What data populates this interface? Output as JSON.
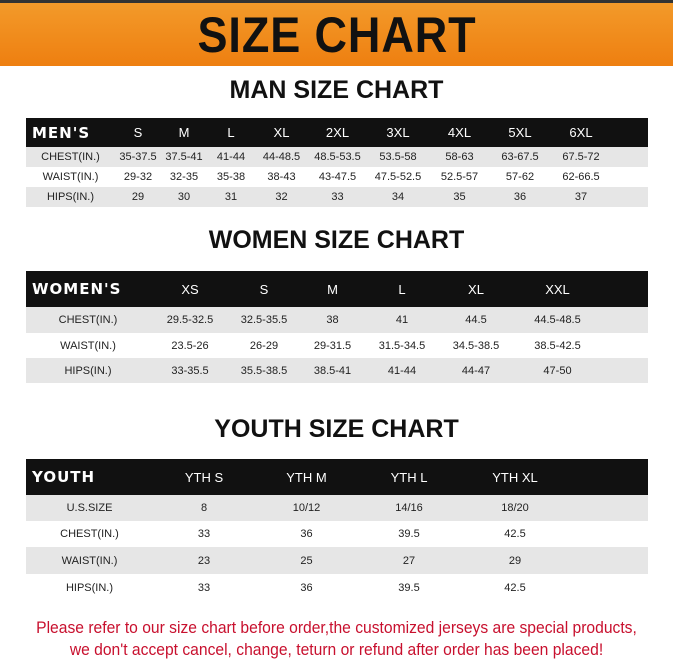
{
  "banner_title": "SIZE CHART",
  "men": {
    "title": "MAN SIZE CHART",
    "header": [
      "MEN'S",
      "S",
      "M",
      "L",
      "XL",
      "2XL",
      "3XL",
      "4XL",
      "5XL",
      "6XL"
    ],
    "rows": [
      [
        "CHEST(IN.)",
        "35-37.5",
        "37.5-41",
        "41-44",
        "44-48.5",
        "48.5-53.5",
        "53.5-58",
        "58-63",
        "63-67.5",
        "67.5-72"
      ],
      [
        "WAIST(IN.)",
        "29-32",
        "32-35",
        "35-38",
        "38-43",
        "43-47.5",
        "47.5-52.5",
        "52.5-57",
        "57-62",
        "62-66.5"
      ],
      [
        "HIPS(IN.)",
        "29",
        "30",
        "31",
        "32",
        "33",
        "34",
        "35",
        "36",
        "37"
      ]
    ]
  },
  "women": {
    "title": "WOMEN SIZE CHART",
    "header": [
      "WOMEN'S",
      "XS",
      "S",
      "M",
      "L",
      "XL",
      "XXL"
    ],
    "rows": [
      [
        "CHEST(IN.)",
        "29.5-32.5",
        "32.5-35.5",
        "38",
        "41",
        "44.5",
        "44.5-48.5"
      ],
      [
        "WAIST(IN.)",
        "23.5-26",
        "26-29",
        "29-31.5",
        "31.5-34.5",
        "34.5-38.5",
        "38.5-42.5"
      ],
      [
        "HIPS(IN.)",
        "33-35.5",
        "35.5-38.5",
        "38.5-41",
        "41-44",
        "44-47",
        "47-50"
      ]
    ]
  },
  "youth": {
    "title": "YOUTH SIZE CHART",
    "header": [
      "YOUTH",
      "YTH S",
      "YTH M",
      "YTH L",
      "YTH XL"
    ],
    "rows": [
      [
        "U.S.SIZE",
        "8",
        "10/12",
        "14/16",
        "18/20"
      ],
      [
        "CHEST(IN.)",
        "33",
        "36",
        "39.5",
        "42.5"
      ],
      [
        "WAIST(IN.)",
        "23",
        "25",
        "27",
        "29"
      ],
      [
        "HIPS(IN.)",
        "33",
        "36",
        "39.5",
        "42.5"
      ]
    ]
  },
  "notice": {
    "line1": "Please refer to our size chart before order,the customized jerseys are special products,",
    "line2": "we don't accept cancel, change, teturn or refund after order has been placed!"
  },
  "colors": {
    "banner": "#ef8718",
    "header_row": "#111111",
    "notice": "#c8102e"
  }
}
